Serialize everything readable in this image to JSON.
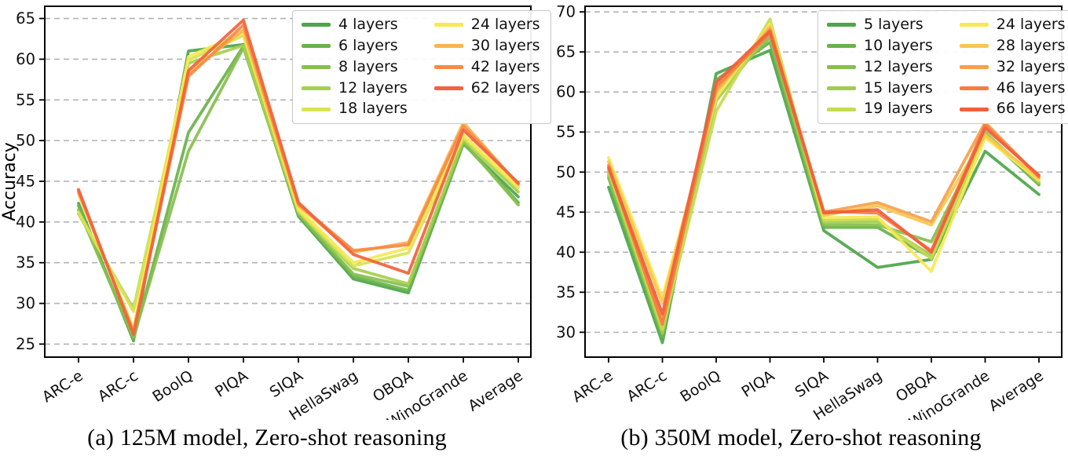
{
  "figure": {
    "background": "#ffffff",
    "grid_color": "#b3b3b3",
    "spine_color": "#000000",
    "tick_label_color": "#111111"
  },
  "chart_data": [
    {
      "id": "a",
      "type": "line",
      "caption": "(a) 125M model, Zero-shot reasoning",
      "ylabel": "Accuracy",
      "grid": true,
      "legend_position": "upper-right",
      "legend_columns": 2,
      "categories": [
        "ARC-e",
        "ARC-c",
        "BoolQ",
        "PIQA",
        "SIQA",
        "HellaSwag",
        "OBQA",
        "WinoGrande",
        "Average"
      ],
      "yticks": [
        25,
        30,
        35,
        40,
        45,
        50,
        55,
        60,
        65
      ],
      "ylim": [
        23.4,
        66.5
      ],
      "series": [
        {
          "name": "4 layers",
          "color": "#4da64a",
          "values": [
            42.3,
            25.4,
            61.0,
            61.8,
            40.7,
            33.0,
            31.3,
            49.6,
            43.1
          ]
        },
        {
          "name": "6 layers",
          "color": "#6ab34c",
          "values": [
            42.0,
            25.6,
            51.0,
            61.6,
            40.9,
            33.3,
            31.6,
            49.7,
            42.4
          ]
        },
        {
          "name": "8 layers",
          "color": "#86c04e",
          "values": [
            41.5,
            25.8,
            48.7,
            61.4,
            41.0,
            33.6,
            32.1,
            49.9,
            42.1
          ]
        },
        {
          "name": "12 layers",
          "color": "#a6d050",
          "values": [
            41.0,
            29.3,
            59.5,
            61.7,
            41.2,
            34.3,
            32.4,
            50.1,
            43.7
          ]
        },
        {
          "name": "18 layers",
          "color": "#d9e353",
          "values": [
            41.2,
            29.0,
            59.9,
            62.9,
            41.4,
            34.6,
            36.2,
            50.4,
            44.2
          ]
        },
        {
          "name": "24 layers",
          "color": "#f8e854",
          "values": [
            43.4,
            26.9,
            60.3,
            63.3,
            41.6,
            35.0,
            36.8,
            50.7,
            44.3
          ]
        },
        {
          "name": "30 layers",
          "color": "#f9b54d",
          "values": [
            43.6,
            26.6,
            58.3,
            63.6,
            42.0,
            36.3,
            37.5,
            52.2,
            44.6
          ]
        },
        {
          "name": "42 layers",
          "color": "#f78a45",
          "values": [
            43.8,
            26.4,
            57.9,
            64.2,
            42.2,
            36.5,
            37.2,
            51.8,
            44.7
          ]
        },
        {
          "name": "62 layers",
          "color": "#f2633d",
          "values": [
            44.0,
            26.2,
            58.6,
            64.8,
            42.4,
            36.0,
            33.7,
            51.3,
            44.8
          ]
        }
      ]
    },
    {
      "id": "b",
      "type": "line",
      "caption": "(b) 350M model, Zero-shot reasoning",
      "ylabel": "",
      "grid": true,
      "legend_position": "upper-right",
      "legend_columns": 2,
      "categories": [
        "ARC-e",
        "ARC-c",
        "BoolQ",
        "PIQA",
        "SIQA",
        "HellaSwag",
        "OBQA",
        "WinoGrande",
        "Average"
      ],
      "yticks": [
        30,
        35,
        40,
        45,
        50,
        55,
        60,
        65,
        70
      ],
      "ylim": [
        26.9,
        70.7
      ],
      "series": [
        {
          "name": "5 layers",
          "color": "#4da64a",
          "values": [
            48.1,
            28.7,
            62.3,
            65.2,
            42.7,
            38.1,
            39.1,
            52.6,
            47.2
          ]
        },
        {
          "name": "10 layers",
          "color": "#6ab34c",
          "values": [
            49.3,
            29.4,
            61.5,
            66.2,
            43.1,
            43.1,
            39.3,
            54.7,
            48.4
          ]
        },
        {
          "name": "12 layers",
          "color": "#86c04e",
          "values": [
            49.6,
            29.8,
            60.1,
            66.8,
            43.4,
            43.4,
            41.3,
            54.9,
            48.6
          ]
        },
        {
          "name": "15 layers",
          "color": "#a2cc50",
          "values": [
            49.9,
            30.0,
            58.9,
            67.5,
            43.7,
            43.8,
            39.6,
            55.0,
            48.7
          ]
        },
        {
          "name": "19 layers",
          "color": "#c6dc52",
          "values": [
            50.2,
            30.4,
            57.6,
            69.1,
            44.0,
            44.1,
            39.2,
            54.6,
            48.9
          ]
        },
        {
          "name": "24 layers",
          "color": "#f8e854",
          "values": [
            51.8,
            34.3,
            59.3,
            68.5,
            44.3,
            44.4,
            37.6,
            54.3,
            49.0
          ]
        },
        {
          "name": "28 layers",
          "color": "#f9c74f",
          "values": [
            51.3,
            33.6,
            59.9,
            68.2,
            44.6,
            45.8,
            43.4,
            54.6,
            49.2
          ]
        },
        {
          "name": "32 layers",
          "color": "#f8a04a",
          "values": [
            50.9,
            31.4,
            60.3,
            67.9,
            45.0,
            46.2,
            43.8,
            56.2,
            49.4
          ]
        },
        {
          "name": "46 layers",
          "color": "#f67d42",
          "values": [
            50.7,
            31.0,
            60.7,
            67.3,
            45.1,
            44.9,
            40.2,
            55.9,
            49.4
          ]
        },
        {
          "name": "66 layers",
          "color": "#f15f3c",
          "values": [
            50.5,
            32.3,
            61.2,
            67.6,
            44.9,
            45.3,
            40.0,
            55.5,
            49.6
          ]
        }
      ]
    }
  ]
}
